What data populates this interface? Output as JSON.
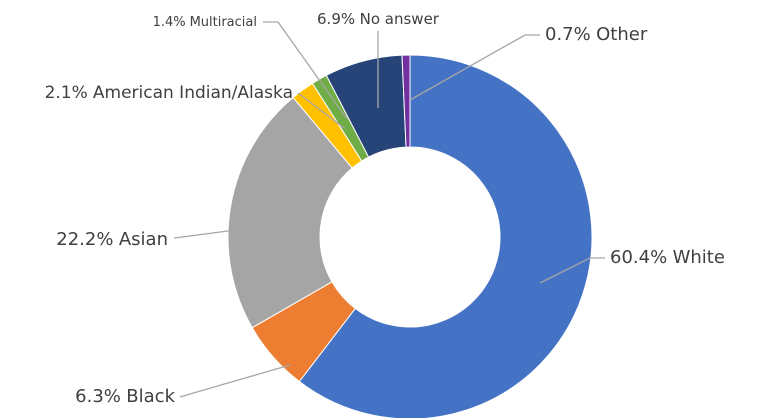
{
  "chart_data": {
    "type": "donut",
    "categories": [
      "White",
      "Black",
      "Asian",
      "American Indian/Alaska",
      "Multiracial",
      "No answer",
      "Other"
    ],
    "values": [
      60.4,
      6.3,
      22.2,
      2.1,
      1.4,
      6.9,
      0.7
    ],
    "value_labels": [
      "60.4%",
      "6.3%",
      "22.2%",
      "2.1%",
      "1.4%",
      "6.9%",
      "0.7%"
    ],
    "colors": [
      "#4472c4",
      "#ed7d31",
      "#a5a5a5",
      "#ffc000",
      "#70ad47",
      "#264478",
      "#7030a0"
    ]
  }
}
